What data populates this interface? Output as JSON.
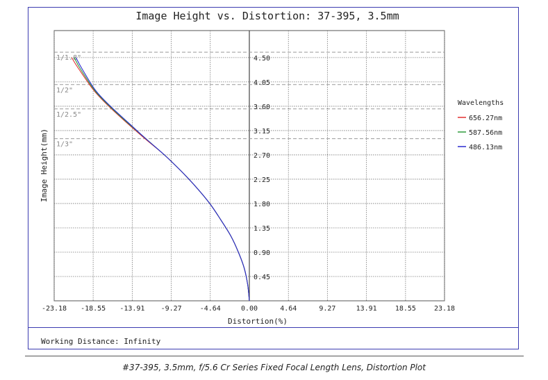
{
  "caption": "#37-395, 3.5mm, f/5.6 Cr Series Fixed Focal Length Lens, Distortion Plot",
  "footer": {
    "text": "Working Distance: Infinity"
  },
  "chart_data": {
    "type": "line",
    "title": "Image Height vs. Distortion: 37-395, 3.5mm",
    "xlabel": "Distortion(%)",
    "ylabel": "Image Height(mm)",
    "xlim": [
      -23.18,
      23.18
    ],
    "ylim": [
      0,
      5.0
    ],
    "x_ticks": [
      "-23.18",
      "-18.55",
      "-13.91",
      "-9.27",
      "-4.64",
      "0.00",
      "4.64",
      "9.27",
      "13.91",
      "18.55",
      "23.18"
    ],
    "x_tick_values": [
      -23.18,
      -18.55,
      -13.91,
      -9.27,
      -4.64,
      0.0,
      4.64,
      9.27,
      13.91,
      18.55,
      23.18
    ],
    "y_ticks": [
      "0.45",
      "0.90",
      "1.35",
      "1.80",
      "2.25",
      "2.70",
      "3.15",
      "3.60",
      "4.05",
      "4.50"
    ],
    "y_tick_values": [
      0.45,
      0.9,
      1.35,
      1.8,
      2.25,
      2.7,
      3.15,
      3.6,
      4.05,
      4.5
    ],
    "grid": true,
    "legend": {
      "title": "Wavelengths",
      "placement": "right"
    },
    "sensor_lines": [
      {
        "label": "1/1.8\"",
        "y": 4.6
      },
      {
        "label": "1/2\"",
        "y": 4.0
      },
      {
        "label": "1/2.5\"",
        "y": 3.55
      },
      {
        "label": "1/3\"",
        "y": 3.0
      }
    ],
    "series": [
      {
        "name": "656.27nm",
        "color": "#e23030",
        "x": [
          0,
          -0.2,
          -0.6,
          -1.3,
          -2.2,
          -3.4,
          -4.7,
          -6.3,
          -8.1,
          -10.1,
          -12.4,
          -14.6,
          -16.7,
          -18.5,
          -20.3,
          -21.1
        ],
        "y": [
          0,
          0.3,
          0.6,
          0.9,
          1.2,
          1.5,
          1.8,
          2.1,
          2.4,
          2.7,
          3.0,
          3.3,
          3.6,
          3.9,
          4.3,
          4.5
        ]
      },
      {
        "name": "587.56nm",
        "color": "#2e9a3a",
        "x": [
          0,
          -0.2,
          -0.6,
          -1.3,
          -2.2,
          -3.4,
          -4.7,
          -6.3,
          -8.1,
          -10.1,
          -12.3,
          -14.5,
          -16.6,
          -18.4,
          -20.1,
          -20.8
        ],
        "y": [
          0,
          0.3,
          0.6,
          0.9,
          1.2,
          1.5,
          1.8,
          2.1,
          2.4,
          2.7,
          3.0,
          3.3,
          3.6,
          3.9,
          4.3,
          4.5
        ]
      },
      {
        "name": "486.13nm",
        "color": "#2a2ad0",
        "x": [
          0,
          -0.2,
          -0.6,
          -1.3,
          -2.2,
          -3.4,
          -4.7,
          -6.3,
          -8.1,
          -10.1,
          -12.3,
          -14.4,
          -16.5,
          -18.3,
          -19.9,
          -20.6
        ],
        "y": [
          0,
          0.3,
          0.6,
          0.9,
          1.2,
          1.5,
          1.8,
          2.1,
          2.4,
          2.7,
          3.0,
          3.3,
          3.6,
          3.9,
          4.3,
          4.5
        ]
      }
    ]
  }
}
